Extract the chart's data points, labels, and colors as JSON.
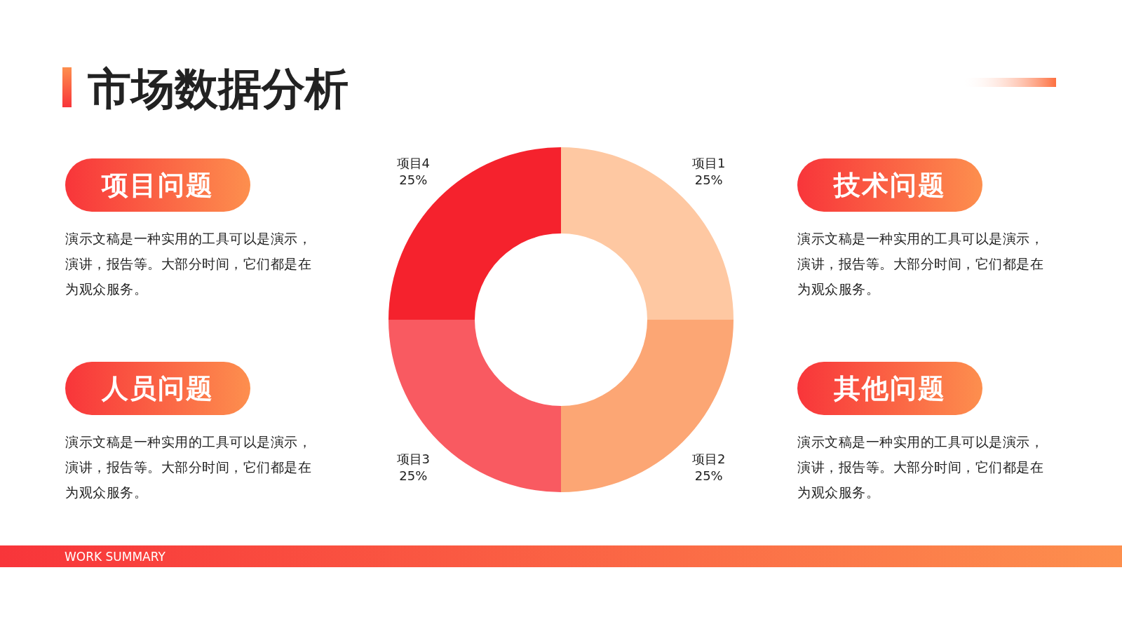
{
  "chart_data": {
    "type": "donut",
    "title": "市场数据分析",
    "categories": [
      "项目1",
      "项目2",
      "项目3",
      "项目4"
    ],
    "values": [
      25,
      25,
      25,
      25
    ],
    "value_labels": [
      "25%",
      "25%",
      "25%",
      "25%"
    ],
    "colors": [
      "#fec8a2",
      "#fca674",
      "#f95a61",
      "#f5222d"
    ],
    "annotations": [
      "项目问题",
      "演示文稿是一种实用的工具可以是演示，演讲，报告等。大部分时间，它们都是在为观众服务。",
      "技术问题",
      "演示文稿是一种实用的工具可以是演示，演讲，报告等。大部分时间，它们都是在为观众服务。",
      "人员问题",
      "演示文稿是一种实用的工具可以是演示，演讲，报告等。大部分时间，它们都是在为观众服务。",
      "其他问题",
      "演示文稿是一种实用的工具可以是演示，演讲，报告等。大部分时间，它们都是在为观众服务。",
      "WORK SUMMARY"
    ]
  }
}
